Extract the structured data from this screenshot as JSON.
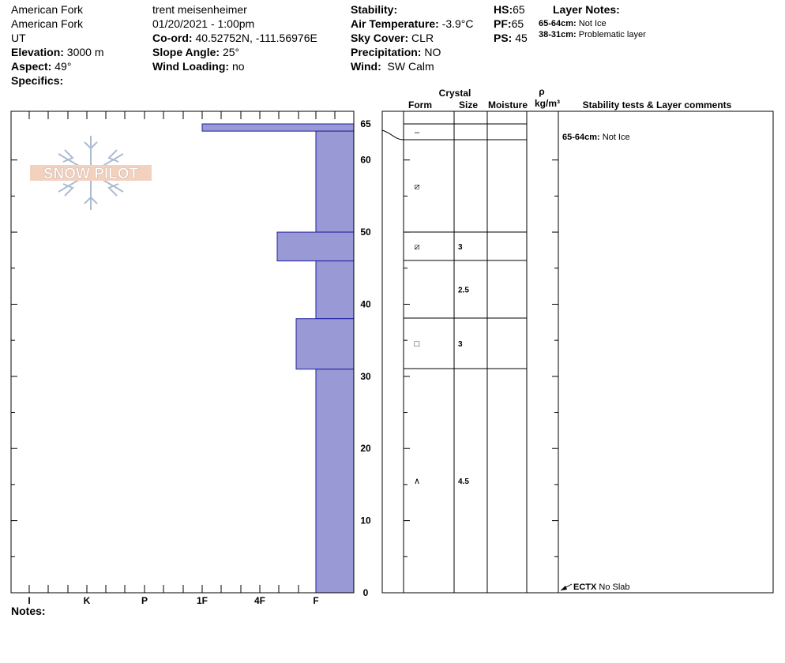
{
  "header": {
    "location1": "American Fork",
    "location2": "American Fork",
    "state": "UT",
    "elevation_label": "Elevation:",
    "elevation_value": "3000 m",
    "aspect_label": "Aspect:",
    "aspect_value": "49°",
    "specifics_label": "Specifics:",
    "observer": "trent meisenheimer",
    "datetime": "01/20/2021 - 1:00pm",
    "coord_label": "Co-ord:",
    "coord_value": "40.52752N, -111.56976E",
    "slope_label": "Slope Angle:",
    "slope_value": "25°",
    "wind_loading_label": "Wind Loading:",
    "wind_loading_value": "no",
    "stability_label": "Stability:",
    "stability_value": "",
    "air_temp_label": "Air Temperature:",
    "air_temp_value": "-3.9°C",
    "sky_label": "Sky Cover:",
    "sky_value": "CLR",
    "precip_label": "Precipitation:",
    "precip_value": "NO",
    "wind_label": "Wind:",
    "wind_value": "SW Calm",
    "hs_label": "HS:",
    "hs_value": "65",
    "pf_label": "PF:",
    "pf_value": "65",
    "ps_label": "PS:",
    "ps_value": "45",
    "layer_notes_title": "Layer Notes:",
    "layer_notes": [
      {
        "range": "65-64cm:",
        "text": "Not Ice"
      },
      {
        "range": "38-31cm:",
        "text": "Problematic layer"
      }
    ]
  },
  "logo_text": "SNOW PILOT",
  "notes_label": "Notes:",
  "columns": {
    "crystal": "Crystal",
    "form": "Form",
    "size": "Size",
    "moisture": "Moisture",
    "rho": "ρ",
    "density_unit": "kg/m³",
    "stability": "Stability tests & Layer comments"
  },
  "colors": {
    "hardness_fill": "#9999d6",
    "hardness_stroke": "#2020a0"
  },
  "chart_data": {
    "type": "bar",
    "orientation": "horizontal",
    "xcategories": [
      "I",
      "K",
      "P",
      "1F",
      "4F",
      "F"
    ],
    "y_ticks": [
      0,
      10,
      20,
      30,
      40,
      50,
      60,
      65
    ],
    "ylim": [
      0,
      65
    ],
    "layers": [
      {
        "top": 65,
        "bottom": 64,
        "hardness": "1F",
        "form_symbol": "–",
        "size": ""
      },
      {
        "top": 64,
        "bottom": 50,
        "hardness": "F",
        "form_symbol": "⧄",
        "size": ""
      },
      {
        "top": 50,
        "bottom": 46,
        "hardness": "4F-",
        "form_symbol": "⧄",
        "size": "3"
      },
      {
        "top": 46,
        "bottom": 38,
        "hardness": "F",
        "form_symbol": "",
        "size": "2.5"
      },
      {
        "top": 38,
        "bottom": 31,
        "hardness": "F+",
        "form_symbol": "□",
        "size": "3"
      },
      {
        "top": 31,
        "bottom": 0,
        "hardness": "F",
        "form_symbol": "∧",
        "size": "4.5"
      }
    ],
    "comments": [
      {
        "depth": 65,
        "range": "65-64cm:",
        "text": "Not Ice"
      }
    ],
    "stability_tests": [
      {
        "depth": 0,
        "test": "ECTX",
        "result": "No Slab"
      }
    ]
  }
}
